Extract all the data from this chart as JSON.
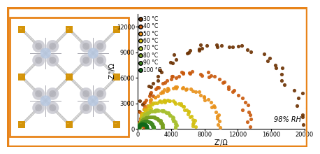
{
  "temperatures": [
    "30 °C",
    "40 °C",
    "50 °C",
    "60 °C",
    "70 °C",
    "80 °C",
    "90 °C",
    "100 °C"
  ],
  "colors": [
    "#6B3000",
    "#C8580A",
    "#E89018",
    "#D4C010",
    "#A8C030",
    "#78A020",
    "#408820",
    "#106818"
  ],
  "xlabel": "Z'/Ω",
  "ylabel": "-Z''/Ω",
  "xlim": [
    0,
    20000
  ],
  "ylim": [
    0,
    13500
  ],
  "xticks": [
    0,
    4000,
    8000,
    12000,
    16000,
    20000
  ],
  "yticks": [
    0,
    3000,
    6000,
    9000,
    12000
  ],
  "annotation": "98% RH",
  "border_color": "#E8841A",
  "arc_params": [
    [
      10000,
      9800
    ],
    [
      6800,
      6600
    ],
    [
      5000,
      4800
    ],
    [
      3500,
      3300
    ],
    [
      2400,
      2200
    ],
    [
      1600,
      1400
    ],
    [
      1000,
      900
    ],
    [
      600,
      550
    ]
  ]
}
